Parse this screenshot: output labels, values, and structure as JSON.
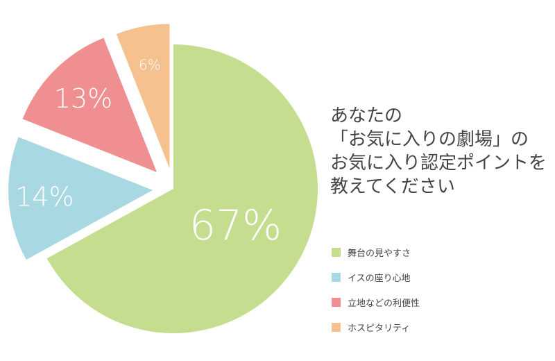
{
  "title_lines": [
    "あなたの",
    "「お気に入りの劇場」の",
    "お気に入り認定ポイントを",
    "教えてください"
  ],
  "chart_data": {
    "type": "pie",
    "categories": [
      "舞台の見やすさ",
      "イスの座り心地",
      "立地などの利便性",
      "ホスピタリティ"
    ],
    "values": [
      67,
      14,
      13,
      6
    ],
    "value_labels": [
      "67%",
      "14%",
      "13%",
      "6%"
    ],
    "colors": [
      "#c5dd8f",
      "#a8d8e2",
      "#ef8f92",
      "#f5c18f"
    ],
    "legend_placement": "right",
    "exploded_slices": [
      "イスの座り心地",
      "立地などの利便性",
      "ホスピタリティ"
    ]
  }
}
